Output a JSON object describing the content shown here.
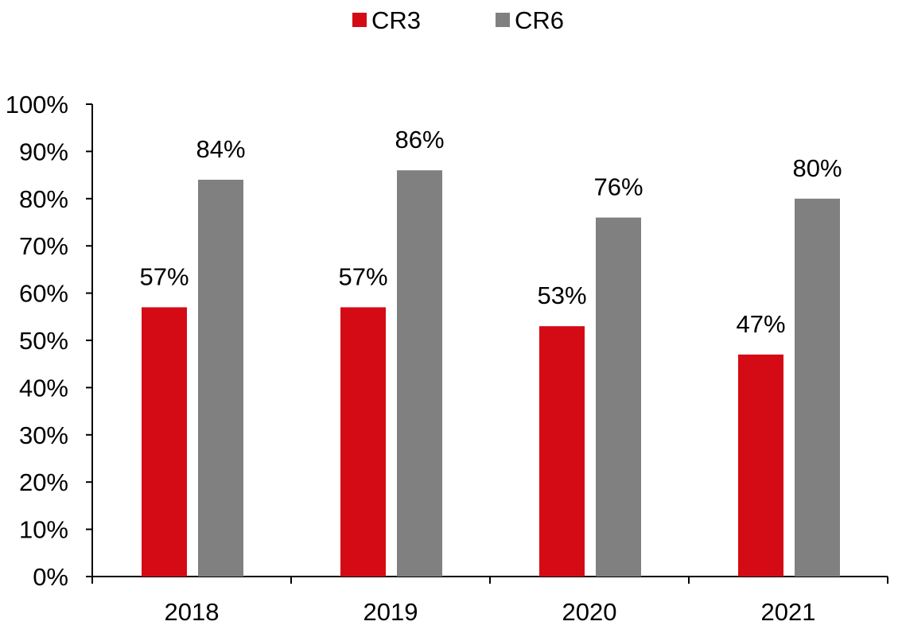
{
  "chart_data": {
    "type": "bar",
    "title": "",
    "xlabel": "",
    "ylabel": "",
    "categories": [
      "2018",
      "2019",
      "2020",
      "2021"
    ],
    "series": [
      {
        "name": "CR3",
        "color": "#d40b14",
        "values": [
          57,
          57,
          53,
          47
        ],
        "labels": [
          "57%",
          "57%",
          "53%",
          "47%"
        ]
      },
      {
        "name": "CR6",
        "color": "#808080",
        "values": [
          84,
          86,
          76,
          80
        ],
        "labels": [
          "84%",
          "86%",
          "76%",
          "80%"
        ]
      }
    ],
    "ylim": [
      0,
      100
    ],
    "yticks": [
      0,
      10,
      20,
      30,
      40,
      50,
      60,
      70,
      80,
      90,
      100
    ],
    "ytick_labels": [
      "0%",
      "10%",
      "20%",
      "30%",
      "40%",
      "50%",
      "60%",
      "70%",
      "80%",
      "90%",
      "100%"
    ],
    "legend_position": "top-center",
    "grid": false
  }
}
